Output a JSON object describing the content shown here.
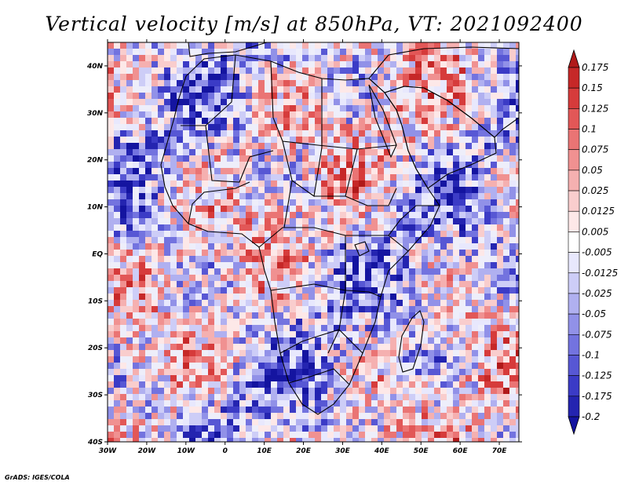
{
  "chart_data": {
    "type": "heatmap",
    "title": "Vertical velocity [m/s] at 850hPa, VT: 2021092400",
    "variable": "Vertical velocity",
    "units": "m/s",
    "level": "850hPa",
    "valid_time": "2021092400",
    "lon_range": [
      -30,
      75
    ],
    "lat_range": [
      -40,
      45
    ],
    "x_ticks": [
      -30,
      -20,
      -10,
      0,
      10,
      20,
      30,
      40,
      50,
      60,
      70
    ],
    "x_tick_labels": [
      "30W",
      "20W",
      "10W",
      "0",
      "10E",
      "20E",
      "30E",
      "40E",
      "50E",
      "60E",
      "70E"
    ],
    "y_ticks": [
      40,
      30,
      20,
      10,
      0,
      -10,
      -20,
      -30,
      -40
    ],
    "y_tick_labels": [
      "40N",
      "30N",
      "20N",
      "10N",
      "EQ",
      "10S",
      "20S",
      "30S",
      "40S"
    ],
    "colorbar": {
      "levels": [
        "0.175",
        "0.15",
        "0.125",
        "0.1",
        "0.075",
        "0.05",
        "0.025",
        "0.0125",
        "0.005",
        "-0.005",
        "-0.0125",
        "-0.025",
        "-0.05",
        "-0.075",
        "-0.1",
        "-0.125",
        "-0.175",
        "-0.2"
      ],
      "colors": [
        "#b01a1a",
        "#c62828",
        "#d63b3b",
        "#e25757",
        "#ea7474",
        "#f09191",
        "#f5b0b0",
        "#f9cdcd",
        "#fde8e8",
        "#ffffff",
        "#e8e8fd",
        "#cdcdf7",
        "#b0b0f0",
        "#9191e8",
        "#7373df",
        "#5757d4",
        "#3b3bc6",
        "#2424b0",
        "#1414a0"
      ]
    }
  },
  "credit": "GrADS: IGES/COLA"
}
